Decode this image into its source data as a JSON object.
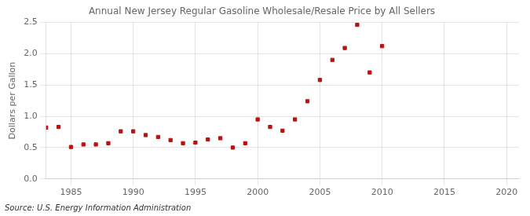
{
  "chart_data": {
    "type": "scatter",
    "title": "Annual New Jersey Regular Gasoline Wholesale/Resale Price by All Sellers",
    "ylabel": "Dollars per Gallon",
    "source": "Source: U.S. Energy Information Administration",
    "x": [
      1983,
      1984,
      1985,
      1986,
      1987,
      1988,
      1989,
      1990,
      1991,
      1992,
      1993,
      1994,
      1995,
      1996,
      1997,
      1998,
      1999,
      2000,
      2001,
      2002,
      2003,
      2004,
      2005,
      2006,
      2007,
      2008,
      2009,
      2010
    ],
    "values": [
      0.82,
      0.83,
      0.51,
      0.55,
      0.55,
      0.57,
      0.76,
      0.76,
      0.7,
      0.67,
      0.62,
      0.57,
      0.58,
      0.63,
      0.65,
      0.5,
      0.57,
      0.95,
      0.83,
      0.77,
      0.95,
      1.24,
      1.58,
      1.9,
      2.09,
      2.46,
      1.7,
      2.12
    ],
    "color": "#bb1111",
    "marker": "square",
    "xlim": [
      1983,
      2021
    ],
    "ylim": [
      0.0,
      2.5
    ],
    "xticks": [
      1985,
      1990,
      1995,
      2000,
      2005,
      2010,
      2015,
      2020
    ],
    "yticks": [
      {
        "value": 0.0,
        "label": "0.0"
      },
      0.5,
      {
        "value": 1.0,
        "label": "1.0"
      },
      1.5,
      {
        "value": 2.0,
        "label": "2.0"
      },
      2.5
    ],
    "grid": true
  }
}
